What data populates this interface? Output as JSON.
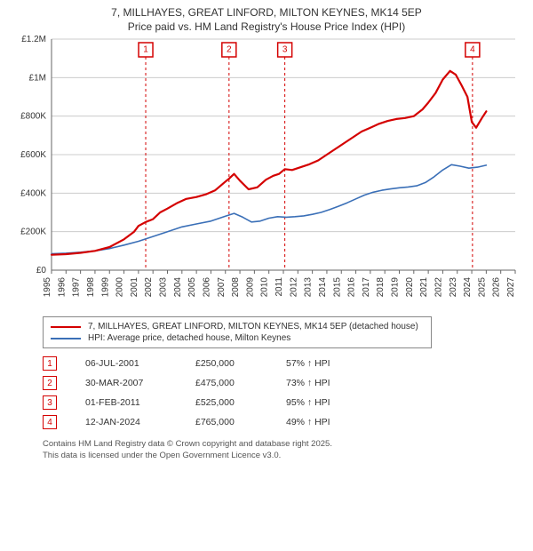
{
  "title_line1": "7, MILLHAYES, GREAT LINFORD, MILTON KEYNES, MK14 5EP",
  "title_line2": "Price paid vs. HM Land Registry's House Price Index (HPI)",
  "chart": {
    "type": "line",
    "background_color": "#ffffff",
    "grid_color": "#cccccc",
    "axis_color": "#666666",
    "title_fontsize": 12,
    "label_fontsize": 10,
    "x": {
      "min": 1995,
      "max": 2027,
      "ticks": [
        1995,
        1996,
        1997,
        1998,
        1999,
        2000,
        2001,
        2002,
        2003,
        2004,
        2005,
        2006,
        2007,
        2008,
        2009,
        2010,
        2011,
        2012,
        2013,
        2014,
        2015,
        2016,
        2017,
        2018,
        2019,
        2020,
        2021,
        2022,
        2023,
        2024,
        2025,
        2026,
        2027
      ]
    },
    "y": {
      "min": 0,
      "max": 1200000,
      "ticks": [
        0,
        200000,
        400000,
        600000,
        800000,
        1000000,
        1200000
      ],
      "tick_labels": [
        "£0",
        "£200K",
        "£400K",
        "£600K",
        "£800K",
        "£1M",
        "£1.2M"
      ]
    },
    "series": [
      {
        "id": "price_paid",
        "label": "7, MILLHAYES, GREAT LINFORD, MILTON KEYNES, MK14 5EP (detached house)",
        "color": "#d40000",
        "width": 2.2,
        "points": [
          [
            1995.0,
            80000
          ],
          [
            1996.0,
            83000
          ],
          [
            1997.0,
            90000
          ],
          [
            1998.0,
            100000
          ],
          [
            1999.0,
            120000
          ],
          [
            2000.0,
            160000
          ],
          [
            2000.7,
            200000
          ],
          [
            2001.0,
            230000
          ],
          [
            2001.5,
            250000
          ],
          [
            2002.0,
            265000
          ],
          [
            2002.5,
            300000
          ],
          [
            2003.0,
            320000
          ],
          [
            2003.7,
            350000
          ],
          [
            2004.3,
            370000
          ],
          [
            2005.0,
            380000
          ],
          [
            2005.7,
            395000
          ],
          [
            2006.3,
            415000
          ],
          [
            2007.0,
            460000
          ],
          [
            2007.25,
            475000
          ],
          [
            2007.6,
            500000
          ],
          [
            2008.0,
            465000
          ],
          [
            2008.6,
            420000
          ],
          [
            2009.2,
            430000
          ],
          [
            2009.8,
            470000
          ],
          [
            2010.3,
            490000
          ],
          [
            2010.7,
            500000
          ],
          [
            2011.1,
            525000
          ],
          [
            2011.6,
            520000
          ],
          [
            2012.2,
            535000
          ],
          [
            2012.8,
            550000
          ],
          [
            2013.4,
            570000
          ],
          [
            2014.0,
            600000
          ],
          [
            2014.6,
            630000
          ],
          [
            2015.2,
            660000
          ],
          [
            2015.8,
            690000
          ],
          [
            2016.4,
            720000
          ],
          [
            2017.0,
            740000
          ],
          [
            2017.6,
            760000
          ],
          [
            2018.2,
            775000
          ],
          [
            2018.8,
            785000
          ],
          [
            2019.4,
            790000
          ],
          [
            2020.0,
            800000
          ],
          [
            2020.6,
            835000
          ],
          [
            2021.0,
            870000
          ],
          [
            2021.5,
            920000
          ],
          [
            2022.0,
            990000
          ],
          [
            2022.5,
            1035000
          ],
          [
            2022.9,
            1015000
          ],
          [
            2023.3,
            960000
          ],
          [
            2023.7,
            900000
          ],
          [
            2024.0,
            770000
          ],
          [
            2024.05,
            765000
          ],
          [
            2024.3,
            740000
          ],
          [
            2024.7,
            790000
          ],
          [
            2025.0,
            825000
          ]
        ]
      },
      {
        "id": "hpi",
        "label": "HPI: Average price, detached house, Milton Keynes",
        "color": "#3a6fb7",
        "width": 1.6,
        "points": [
          [
            1995.0,
            85000
          ],
          [
            1996.0,
            88000
          ],
          [
            1997.0,
            93000
          ],
          [
            1998.0,
            100000
          ],
          [
            1999.0,
            112000
          ],
          [
            2000.0,
            130000
          ],
          [
            2001.0,
            150000
          ],
          [
            2002.0,
            175000
          ],
          [
            2003.0,
            200000
          ],
          [
            2004.0,
            225000
          ],
          [
            2005.0,
            240000
          ],
          [
            2006.0,
            255000
          ],
          [
            2007.0,
            280000
          ],
          [
            2007.6,
            295000
          ],
          [
            2008.2,
            275000
          ],
          [
            2008.8,
            250000
          ],
          [
            2009.4,
            255000
          ],
          [
            2010.0,
            270000
          ],
          [
            2010.6,
            278000
          ],
          [
            2011.2,
            275000
          ],
          [
            2011.8,
            278000
          ],
          [
            2012.4,
            282000
          ],
          [
            2013.0,
            290000
          ],
          [
            2013.6,
            300000
          ],
          [
            2014.2,
            315000
          ],
          [
            2014.8,
            332000
          ],
          [
            2015.4,
            350000
          ],
          [
            2016.0,
            370000
          ],
          [
            2016.6,
            390000
          ],
          [
            2017.2,
            405000
          ],
          [
            2017.8,
            415000
          ],
          [
            2018.4,
            422000
          ],
          [
            2019.0,
            428000
          ],
          [
            2019.6,
            432000
          ],
          [
            2020.2,
            438000
          ],
          [
            2020.8,
            455000
          ],
          [
            2021.4,
            485000
          ],
          [
            2022.0,
            520000
          ],
          [
            2022.6,
            548000
          ],
          [
            2023.2,
            540000
          ],
          [
            2023.8,
            530000
          ],
          [
            2024.4,
            535000
          ],
          [
            2025.0,
            545000
          ]
        ]
      }
    ],
    "sale_markers": [
      {
        "n": "1",
        "year": 2001.5
      },
      {
        "n": "2",
        "year": 2007.25
      },
      {
        "n": "3",
        "year": 2011.1
      },
      {
        "n": "4",
        "year": 2024.05
      }
    ]
  },
  "legend": {
    "border_color": "#888888"
  },
  "sales": [
    {
      "n": "1",
      "date": "06-JUL-2001",
      "price": "£250,000",
      "pct": "57% ↑ HPI"
    },
    {
      "n": "2",
      "date": "30-MAR-2007",
      "price": "£475,000",
      "pct": "73% ↑ HPI"
    },
    {
      "n": "3",
      "date": "01-FEB-2011",
      "price": "£525,000",
      "pct": "95% ↑ HPI"
    },
    {
      "n": "4",
      "date": "12-JAN-2024",
      "price": "£765,000",
      "pct": "49% ↑ HPI"
    }
  ],
  "footer_line1": "Contains HM Land Registry data © Crown copyright and database right 2025.",
  "footer_line2": "This data is licensed under the Open Government Licence v3.0."
}
